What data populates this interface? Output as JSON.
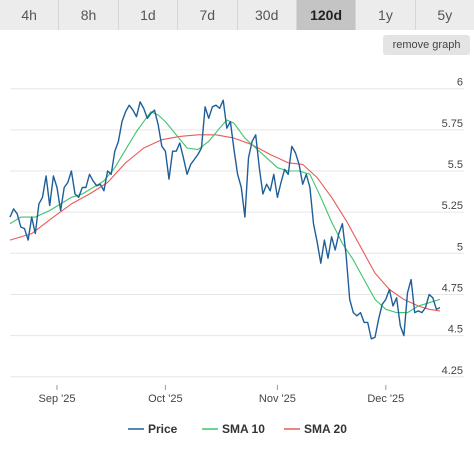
{
  "tabs": [
    {
      "label": "4h",
      "active": false
    },
    {
      "label": "8h",
      "active": false
    },
    {
      "label": "1d",
      "active": false
    },
    {
      "label": "7d",
      "active": false
    },
    {
      "label": "30d",
      "active": false
    },
    {
      "label": "120d",
      "active": true
    },
    {
      "label": "1y",
      "active": false
    },
    {
      "label": "5y",
      "active": false
    }
  ],
  "remove_graph_label": "remove graph",
  "chart_data": {
    "type": "line",
    "y_ticks": [
      "6",
      "5.75",
      "5.5",
      "5.25",
      "5",
      "4.75",
      "4.5",
      "4.25"
    ],
    "y_tick_values": [
      6,
      5.75,
      5.5,
      5.25,
      5,
      4.75,
      4.5,
      4.25
    ],
    "ylim": [
      4.2,
      6.15
    ],
    "x_range": [
      "2025-08-19",
      "2025-12-16"
    ],
    "x_ticks": [
      {
        "label": "Sep '25",
        "date": "2025-09-01"
      },
      {
        "label": "Oct '25",
        "date": "2025-10-01"
      },
      {
        "label": "Nov '25",
        "date": "2025-11-01"
      },
      {
        "label": "Dec '25",
        "date": "2025-12-01"
      }
    ],
    "grid": true,
    "legend_position": "bottom",
    "series": [
      {
        "name": "Price",
        "color": "#1f5e99",
        "points": [
          [
            "2025-08-19",
            5.22
          ],
          [
            "2025-08-20",
            5.27
          ],
          [
            "2025-08-21",
            5.24
          ],
          [
            "2025-08-22",
            5.16
          ],
          [
            "2025-08-23",
            5.15
          ],
          [
            "2025-08-24",
            5.08
          ],
          [
            "2025-08-25",
            5.22
          ],
          [
            "2025-08-26",
            5.12
          ],
          [
            "2025-08-27",
            5.3
          ],
          [
            "2025-08-28",
            5.34
          ],
          [
            "2025-08-29",
            5.47
          ],
          [
            "2025-08-30",
            5.29
          ],
          [
            "2025-08-31",
            5.47
          ],
          [
            "2025-09-01",
            5.4
          ],
          [
            "2025-09-02",
            5.26
          ],
          [
            "2025-09-03",
            5.4
          ],
          [
            "2025-09-04",
            5.43
          ],
          [
            "2025-09-05",
            5.5
          ],
          [
            "2025-09-06",
            5.36
          ],
          [
            "2025-09-07",
            5.34
          ],
          [
            "2025-09-08",
            5.4
          ],
          [
            "2025-09-09",
            5.4
          ],
          [
            "2025-09-10",
            5.48
          ],
          [
            "2025-09-11",
            5.44
          ],
          [
            "2025-09-12",
            5.41
          ],
          [
            "2025-09-13",
            5.42
          ],
          [
            "2025-09-14",
            5.38
          ],
          [
            "2025-09-15",
            5.5
          ],
          [
            "2025-09-16",
            5.48
          ],
          [
            "2025-09-17",
            5.62
          ],
          [
            "2025-09-18",
            5.68
          ],
          [
            "2025-09-19",
            5.8
          ],
          [
            "2025-09-20",
            5.86
          ],
          [
            "2025-09-21",
            5.9
          ],
          [
            "2025-09-22",
            5.87
          ],
          [
            "2025-09-23",
            5.83
          ],
          [
            "2025-09-24",
            5.92
          ],
          [
            "2025-09-25",
            5.88
          ],
          [
            "2025-09-26",
            5.82
          ],
          [
            "2025-09-27",
            5.85
          ],
          [
            "2025-09-28",
            5.87
          ],
          [
            "2025-09-29",
            5.78
          ],
          [
            "2025-09-30",
            5.65
          ],
          [
            "2025-10-01",
            5.62
          ],
          [
            "2025-10-02",
            5.45
          ],
          [
            "2025-10-03",
            5.62
          ],
          [
            "2025-10-04",
            5.62
          ],
          [
            "2025-10-05",
            5.67
          ],
          [
            "2025-10-06",
            5.58
          ],
          [
            "2025-10-07",
            5.48
          ],
          [
            "2025-10-08",
            5.54
          ],
          [
            "2025-10-09",
            5.57
          ],
          [
            "2025-10-10",
            5.6
          ],
          [
            "2025-10-11",
            5.64
          ],
          [
            "2025-10-12",
            5.89
          ],
          [
            "2025-10-13",
            5.82
          ],
          [
            "2025-10-14",
            5.89
          ],
          [
            "2025-10-15",
            5.9
          ],
          [
            "2025-10-16",
            5.88
          ],
          [
            "2025-10-17",
            5.93
          ],
          [
            "2025-10-18",
            5.76
          ],
          [
            "2025-10-19",
            5.8
          ],
          [
            "2025-10-20",
            5.63
          ],
          [
            "2025-10-21",
            5.48
          ],
          [
            "2025-10-22",
            5.4
          ],
          [
            "2025-10-23",
            5.22
          ],
          [
            "2025-10-24",
            5.58
          ],
          [
            "2025-10-25",
            5.68
          ],
          [
            "2025-10-26",
            5.72
          ],
          [
            "2025-10-27",
            5.52
          ],
          [
            "2025-10-28",
            5.36
          ],
          [
            "2025-10-29",
            5.42
          ],
          [
            "2025-10-30",
            5.38
          ],
          [
            "2025-10-31",
            5.48
          ],
          [
            "2025-11-01",
            5.34
          ],
          [
            "2025-11-02",
            5.43
          ],
          [
            "2025-11-03",
            5.51
          ],
          [
            "2025-11-04",
            5.48
          ],
          [
            "2025-11-05",
            5.65
          ],
          [
            "2025-11-06",
            5.61
          ],
          [
            "2025-11-07",
            5.54
          ],
          [
            "2025-11-08",
            5.42
          ],
          [
            "2025-11-09",
            5.48
          ],
          [
            "2025-11-10",
            5.4
          ],
          [
            "2025-11-11",
            5.18
          ],
          [
            "2025-11-12",
            5.07
          ],
          [
            "2025-11-13",
            4.94
          ],
          [
            "2025-11-14",
            5.08
          ],
          [
            "2025-11-15",
            4.97
          ],
          [
            "2025-11-16",
            5.1
          ],
          [
            "2025-11-17",
            5.02
          ],
          [
            "2025-11-18",
            5.12
          ],
          [
            "2025-11-19",
            5.18
          ],
          [
            "2025-11-20",
            4.99
          ],
          [
            "2025-11-21",
            4.72
          ],
          [
            "2025-11-22",
            4.64
          ],
          [
            "2025-11-23",
            4.62
          ],
          [
            "2025-11-24",
            4.64
          ],
          [
            "2025-11-25",
            4.58
          ],
          [
            "2025-11-26",
            4.58
          ],
          [
            "2025-11-27",
            4.48
          ],
          [
            "2025-11-28",
            4.49
          ],
          [
            "2025-11-29",
            4.6
          ],
          [
            "2025-11-30",
            4.69
          ],
          [
            "2025-12-01",
            4.72
          ],
          [
            "2025-12-02",
            4.78
          ],
          [
            "2025-12-03",
            4.68
          ],
          [
            "2025-12-04",
            4.73
          ],
          [
            "2025-12-05",
            4.56
          ],
          [
            "2025-12-06",
            4.5
          ],
          [
            "2025-12-07",
            4.76
          ],
          [
            "2025-12-08",
            4.84
          ],
          [
            "2025-12-09",
            4.64
          ],
          [
            "2025-12-10",
            4.65
          ],
          [
            "2025-12-11",
            4.64
          ],
          [
            "2025-12-12",
            4.67
          ],
          [
            "2025-12-13",
            4.75
          ],
          [
            "2025-12-14",
            4.73
          ],
          [
            "2025-12-15",
            4.66
          ],
          [
            "2025-12-16",
            4.67
          ]
        ]
      },
      {
        "name": "SMA 10",
        "color": "#3cc46b",
        "points": [
          [
            "2025-08-19",
            5.18
          ],
          [
            "2025-08-22",
            5.22
          ],
          [
            "2025-08-26",
            5.22
          ],
          [
            "2025-08-30",
            5.26
          ],
          [
            "2025-09-02",
            5.3
          ],
          [
            "2025-09-05",
            5.34
          ],
          [
            "2025-09-08",
            5.36
          ],
          [
            "2025-09-11",
            5.4
          ],
          [
            "2025-09-14",
            5.44
          ],
          [
            "2025-09-17",
            5.52
          ],
          [
            "2025-09-20",
            5.63
          ],
          [
            "2025-09-23",
            5.74
          ],
          [
            "2025-09-25",
            5.8
          ],
          [
            "2025-09-27",
            5.86
          ],
          [
            "2025-09-29",
            5.84
          ],
          [
            "2025-10-01",
            5.8
          ],
          [
            "2025-10-04",
            5.72
          ],
          [
            "2025-10-07",
            5.64
          ],
          [
            "2025-10-10",
            5.63
          ],
          [
            "2025-10-13",
            5.68
          ],
          [
            "2025-10-16",
            5.76
          ],
          [
            "2025-10-18",
            5.81
          ],
          [
            "2025-10-20",
            5.79
          ],
          [
            "2025-10-23",
            5.7
          ],
          [
            "2025-10-26",
            5.64
          ],
          [
            "2025-10-29",
            5.58
          ],
          [
            "2025-11-01",
            5.52
          ],
          [
            "2025-11-04",
            5.5
          ],
          [
            "2025-11-07",
            5.5
          ],
          [
            "2025-11-10",
            5.48
          ],
          [
            "2025-11-13",
            5.34
          ],
          [
            "2025-11-16",
            5.19
          ],
          [
            "2025-11-19",
            5.06
          ],
          [
            "2025-11-22",
            4.96
          ],
          [
            "2025-11-25",
            4.84
          ],
          [
            "2025-11-28",
            4.72
          ],
          [
            "2025-12-01",
            4.66
          ],
          [
            "2025-12-04",
            4.64
          ],
          [
            "2025-12-07",
            4.64
          ],
          [
            "2025-12-10",
            4.68
          ],
          [
            "2025-12-13",
            4.7
          ],
          [
            "2025-12-16",
            4.72
          ]
        ]
      },
      {
        "name": "SMA 20",
        "color": "#ec5a56",
        "points": [
          [
            "2025-08-19",
            5.08
          ],
          [
            "2025-08-25",
            5.12
          ],
          [
            "2025-08-31",
            5.22
          ],
          [
            "2025-09-05",
            5.3
          ],
          [
            "2025-09-10",
            5.36
          ],
          [
            "2025-09-15",
            5.43
          ],
          [
            "2025-09-20",
            5.55
          ],
          [
            "2025-09-25",
            5.64
          ],
          [
            "2025-09-30",
            5.69
          ],
          [
            "2025-10-05",
            5.71
          ],
          [
            "2025-10-10",
            5.72
          ],
          [
            "2025-10-15",
            5.72
          ],
          [
            "2025-10-20",
            5.7
          ],
          [
            "2025-10-25",
            5.66
          ],
          [
            "2025-10-30",
            5.6
          ],
          [
            "2025-11-04",
            5.55
          ],
          [
            "2025-11-08",
            5.54
          ],
          [
            "2025-11-12",
            5.46
          ],
          [
            "2025-11-16",
            5.34
          ],
          [
            "2025-11-20",
            5.2
          ],
          [
            "2025-11-24",
            5.04
          ],
          [
            "2025-11-28",
            4.88
          ],
          [
            "2025-12-02",
            4.78
          ],
          [
            "2025-12-06",
            4.72
          ],
          [
            "2025-12-10",
            4.68
          ],
          [
            "2025-12-13",
            4.66
          ],
          [
            "2025-12-16",
            4.65
          ]
        ]
      }
    ]
  }
}
